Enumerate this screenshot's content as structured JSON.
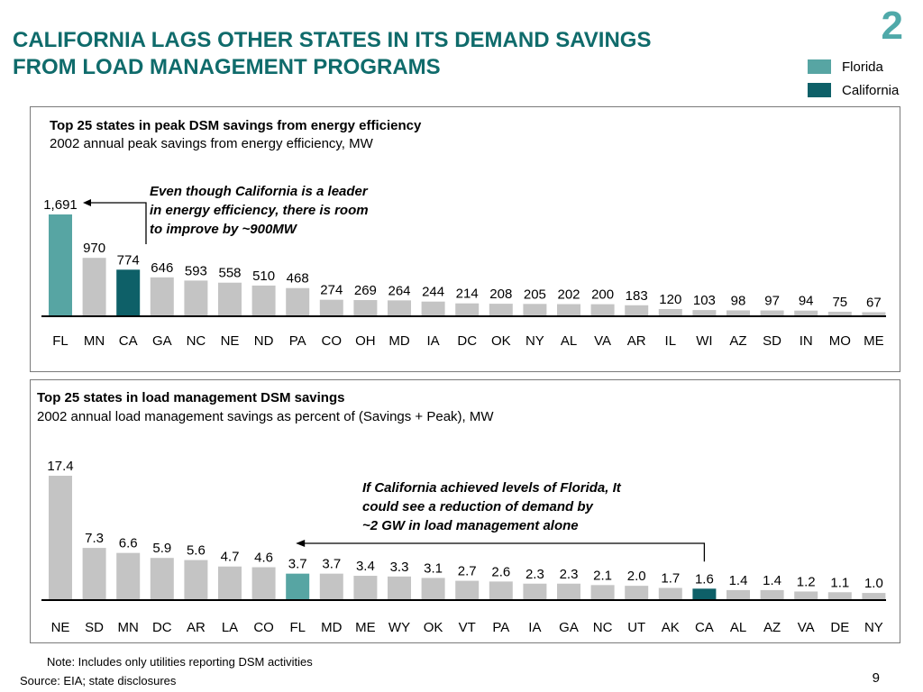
{
  "slide": {
    "title_line1": "CALIFORNIA LAGS OTHER STATES IN ITS DEMAND SAVINGS",
    "title_line2": "FROM LOAD MANAGEMENT PROGRAMS",
    "number": "2",
    "page_number": "9",
    "note": "Note: Includes only utilities reporting DSM activities",
    "source": "Source: EIA;  state disclosures"
  },
  "legend": [
    {
      "label": "Florida",
      "color": "#57a5a3"
    },
    {
      "label": "California",
      "color": "#0e6068"
    }
  ],
  "colors": {
    "default_bar": "#c4c4c4",
    "florida": "#57a5a3",
    "california": "#0e6068",
    "title": "#0f6b6b"
  },
  "panel1": {
    "title": "Top 25 states in peak DSM savings from energy efficiency",
    "subtitle": "2002 annual peak savings from energy efficiency, MW",
    "annotation_lines": [
      "Even though California is a leader",
      "in energy efficiency, there is room",
      "to improve  by ~900MW"
    ]
  },
  "panel2": {
    "title": "Top 25 states in load management DSM savings",
    "subtitle": "2002 annual load management savings as percent of (Savings + Peak), MW",
    "annotation_lines": [
      "If California achieved levels of Florida, It",
      "could see a reduction of demand by",
      "~2 GW in load management alone"
    ]
  },
  "chart_data": [
    {
      "type": "bar",
      "title": "Top 25 states in peak DSM savings from energy efficiency",
      "subtitle": "2002 annual peak savings from energy efficiency, MW",
      "categories": [
        "FL",
        "MN",
        "CA",
        "GA",
        "NC",
        "NE",
        "ND",
        "PA",
        "CO",
        "OH",
        "MD",
        "IA",
        "DC",
        "OK",
        "NY",
        "AL",
        "VA",
        "AR",
        "IL",
        "WI",
        "AZ",
        "SD",
        "IN",
        "MO",
        "ME"
      ],
      "values": [
        1691,
        970,
        774,
        646,
        593,
        558,
        510,
        468,
        274,
        269,
        264,
        244,
        214,
        208,
        205,
        202,
        200,
        183,
        120,
        103,
        98,
        97,
        94,
        75,
        67
      ],
      "labels": [
        "1,691",
        "970",
        "774",
        "646",
        "593",
        "558",
        "510",
        "468",
        "274",
        "269",
        "264",
        "244",
        "214",
        "208",
        "205",
        "202",
        "200",
        "183",
        "120",
        "103",
        "98",
        "97",
        "94",
        "75",
        "67"
      ],
      "highlight": {
        "FL": "florida",
        "CA": "california"
      },
      "ylim": [
        0,
        1691
      ]
    },
    {
      "type": "bar",
      "title": "Top 25 states in load management DSM savings",
      "subtitle": "2002 annual load management savings as percent of (Savings + Peak), MW",
      "categories": [
        "NE",
        "SD",
        "MN",
        "DC",
        "AR",
        "LA",
        "CO",
        "FL",
        "MD",
        "ME",
        "WY",
        "OK",
        "VT",
        "PA",
        "IA",
        "GA",
        "NC",
        "UT",
        "AK",
        "CA",
        "AL",
        "AZ",
        "VA",
        "DE",
        "NY"
      ],
      "values": [
        17.4,
        7.3,
        6.6,
        5.9,
        5.6,
        4.7,
        4.6,
        3.7,
        3.7,
        3.4,
        3.3,
        3.1,
        2.7,
        2.6,
        2.3,
        2.3,
        2.1,
        2.0,
        1.7,
        1.6,
        1.4,
        1.4,
        1.2,
        1.1,
        1.0
      ],
      "labels": [
        "17.4",
        "7.3",
        "6.6",
        "5.9",
        "5.6",
        "4.7",
        "4.6",
        "3.7",
        "3.7",
        "3.4",
        "3.3",
        "3.1",
        "2.7",
        "2.6",
        "2.3",
        "2.3",
        "2.1",
        "2.0",
        "1.7",
        "1.6",
        "1.4",
        "1.4",
        "1.2",
        "1.1",
        "1.0"
      ],
      "highlight": {
        "FL": "florida",
        "CA": "california"
      },
      "ylim": [
        0,
        17.4
      ]
    }
  ]
}
